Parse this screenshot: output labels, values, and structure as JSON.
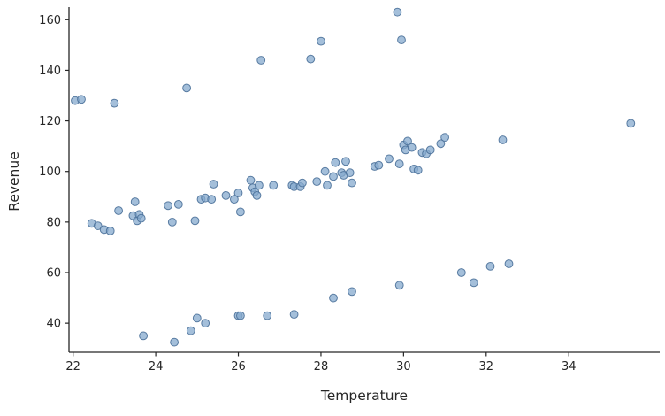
{
  "chart_data": {
    "type": "scatter",
    "title": "",
    "xlabel": "Temperature",
    "ylabel": "Revenue",
    "xlim": [
      21.9,
      36.2
    ],
    "ylim": [
      28.5,
      165
    ],
    "x_ticks": [
      22,
      24,
      26,
      28,
      30,
      32,
      34
    ],
    "y_ticks": [
      40,
      60,
      80,
      100,
      120,
      140,
      160
    ],
    "grid": false,
    "legend": null,
    "axis_color": "#262626",
    "text_color": "#262626",
    "marker_color": "#85aacd",
    "marker_edge_color": "#4a7099",
    "points": [
      [
        22.05,
        128
      ],
      [
        22.2,
        128.5
      ],
      [
        23.0,
        127
      ],
      [
        24.75,
        133
      ],
      [
        26.55,
        144
      ],
      [
        27.75,
        144.5
      ],
      [
        28.0,
        151.5
      ],
      [
        29.85,
        163
      ],
      [
        29.95,
        152
      ],
      [
        35.5,
        119
      ],
      [
        22.45,
        79.5
      ],
      [
        22.6,
        78.5
      ],
      [
        22.75,
        77
      ],
      [
        22.9,
        76.5
      ],
      [
        23.1,
        84.5
      ],
      [
        23.45,
        82.5
      ],
      [
        23.5,
        88
      ],
      [
        23.55,
        80.5
      ],
      [
        23.6,
        83
      ],
      [
        23.65,
        81.5
      ],
      [
        24.3,
        86.5
      ],
      [
        24.4,
        80
      ],
      [
        24.55,
        87
      ],
      [
        24.95,
        80.5
      ],
      [
        25.1,
        89
      ],
      [
        25.2,
        89.5
      ],
      [
        25.35,
        89
      ],
      [
        25.4,
        95
      ],
      [
        25.7,
        90.5
      ],
      [
        25.9,
        89
      ],
      [
        26.0,
        91.5
      ],
      [
        26.05,
        84
      ],
      [
        26.3,
        96.5
      ],
      [
        26.35,
        93.5
      ],
      [
        26.4,
        92
      ],
      [
        26.45,
        90.5
      ],
      [
        26.5,
        94.5
      ],
      [
        26.85,
        94.5
      ],
      [
        27.3,
        94.5
      ],
      [
        27.35,
        94
      ],
      [
        27.5,
        94
      ],
      [
        27.55,
        95.5
      ],
      [
        27.9,
        96
      ],
      [
        28.1,
        100
      ],
      [
        28.15,
        94.5
      ],
      [
        28.3,
        98
      ],
      [
        28.35,
        103.5
      ],
      [
        28.5,
        99.5
      ],
      [
        28.55,
        98.5
      ],
      [
        28.6,
        104
      ],
      [
        28.7,
        99.5
      ],
      [
        28.75,
        95.5
      ],
      [
        29.3,
        102
      ],
      [
        29.4,
        102.5
      ],
      [
        29.65,
        105
      ],
      [
        29.9,
        103
      ],
      [
        30.0,
        110.5
      ],
      [
        30.05,
        108.5
      ],
      [
        30.1,
        112
      ],
      [
        30.2,
        109.5
      ],
      [
        30.25,
        101
      ],
      [
        30.35,
        100.5
      ],
      [
        30.45,
        107.5
      ],
      [
        30.55,
        107
      ],
      [
        30.65,
        108.5
      ],
      [
        30.9,
        111
      ],
      [
        31.0,
        113.5
      ],
      [
        32.4,
        112.5
      ],
      [
        23.7,
        35
      ],
      [
        24.45,
        32.5
      ],
      [
        24.85,
        37
      ],
      [
        25.0,
        42
      ],
      [
        25.2,
        40
      ],
      [
        26.0,
        43
      ],
      [
        26.05,
        43
      ],
      [
        26.7,
        43
      ],
      [
        27.35,
        43.5
      ],
      [
        28.3,
        50
      ],
      [
        28.75,
        52.5
      ],
      [
        29.9,
        55
      ],
      [
        31.4,
        60
      ],
      [
        31.7,
        56
      ],
      [
        32.1,
        62.5
      ],
      [
        32.55,
        63.5
      ]
    ]
  }
}
